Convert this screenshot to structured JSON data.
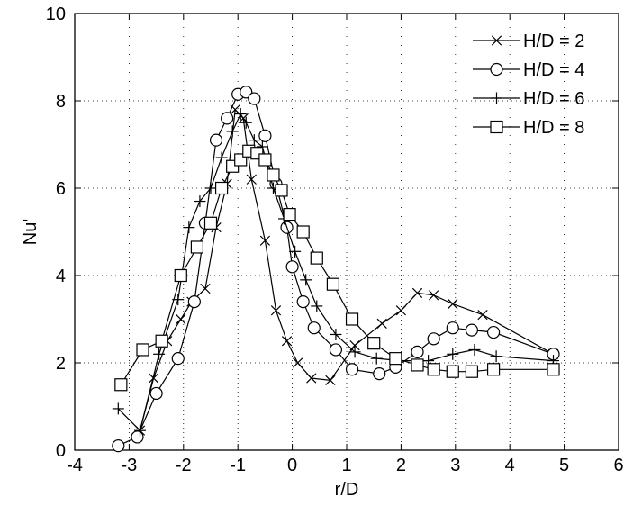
{
  "chart_data": {
    "type": "line",
    "title": "",
    "xlabel": "r/D",
    "ylabel": "Nu'",
    "xlim": [
      -4,
      6
    ],
    "ylim": [
      0,
      10
    ],
    "xticks": [
      -4,
      -3,
      -2,
      -1,
      0,
      1,
      2,
      3,
      4,
      5,
      6
    ],
    "yticks": [
      0,
      2,
      4,
      6,
      8,
      10
    ],
    "grid": true,
    "legend_position": "top-right",
    "series": [
      {
        "name": "H/D = 2",
        "marker": "x",
        "x": [
          -2.8,
          -2.55,
          -2.3,
          -2.05,
          -1.85,
          -1.6,
          -1.4,
          -1.2,
          -1.05,
          -0.9,
          -0.75,
          -0.5,
          -0.3,
          -0.1,
          0.1,
          0.35,
          0.7,
          1.15,
          1.65,
          2.0,
          2.3,
          2.6,
          2.95,
          3.5,
          4.8
        ],
        "y": [
          0.45,
          1.65,
          2.5,
          3.0,
          3.4,
          3.7,
          5.1,
          6.1,
          7.8,
          7.6,
          6.2,
          4.8,
          3.2,
          2.5,
          2.0,
          1.65,
          1.6,
          2.4,
          2.9,
          3.2,
          3.6,
          3.55,
          3.35,
          3.1,
          2.2
        ]
      },
      {
        "name": "H/D = 4",
        "marker": "o",
        "x": [
          -3.2,
          -2.85,
          -2.5,
          -2.1,
          -1.8,
          -1.6,
          -1.4,
          -1.2,
          -1.0,
          -0.85,
          -0.7,
          -0.5,
          -0.3,
          -0.1,
          0.0,
          0.2,
          0.4,
          0.8,
          1.1,
          1.6,
          1.9,
          2.3,
          2.6,
          2.95,
          3.3,
          3.7,
          4.8
        ],
        "y": [
          0.1,
          0.3,
          1.3,
          2.1,
          3.4,
          5.2,
          7.1,
          7.6,
          8.15,
          8.2,
          8.05,
          7.2,
          6.1,
          5.1,
          4.2,
          3.4,
          2.8,
          2.3,
          1.85,
          1.75,
          1.9,
          2.25,
          2.55,
          2.8,
          2.75,
          2.7,
          2.2
        ]
      },
      {
        "name": "H/D = 6",
        "marker": "+",
        "x": [
          -3.2,
          -2.8,
          -2.45,
          -2.1,
          -1.9,
          -1.7,
          -1.5,
          -1.3,
          -1.1,
          -0.95,
          -0.85,
          -0.7,
          -0.55,
          -0.35,
          -0.15,
          0.05,
          0.25,
          0.45,
          0.8,
          1.15,
          1.55,
          2.0,
          2.5,
          2.95,
          3.35,
          3.75,
          4.8
        ],
        "y": [
          0.95,
          0.45,
          2.2,
          3.45,
          5.1,
          5.7,
          6.0,
          6.7,
          7.3,
          7.7,
          7.5,
          7.1,
          6.95,
          6.0,
          5.3,
          4.55,
          3.9,
          3.3,
          2.65,
          2.25,
          2.1,
          2.05,
          2.05,
          2.2,
          2.3,
          2.15,
          2.05
        ]
      },
      {
        "name": "H/D = 8",
        "marker": "s",
        "x": [
          -3.15,
          -2.75,
          -2.4,
          -2.05,
          -1.75,
          -1.5,
          -1.3,
          -1.1,
          -0.95,
          -0.8,
          -0.65,
          -0.5,
          -0.35,
          -0.2,
          -0.05,
          0.2,
          0.45,
          0.75,
          1.1,
          1.5,
          1.9,
          2.3,
          2.6,
          2.95,
          3.3,
          3.7,
          4.8
        ],
        "y": [
          1.5,
          2.3,
          2.5,
          4.0,
          4.65,
          5.2,
          6.0,
          6.5,
          6.65,
          6.85,
          6.8,
          6.65,
          6.3,
          5.95,
          5.4,
          5.0,
          4.4,
          3.8,
          3.0,
          2.45,
          2.1,
          1.95,
          1.85,
          1.8,
          1.8,
          1.85,
          1.85
        ]
      }
    ]
  }
}
